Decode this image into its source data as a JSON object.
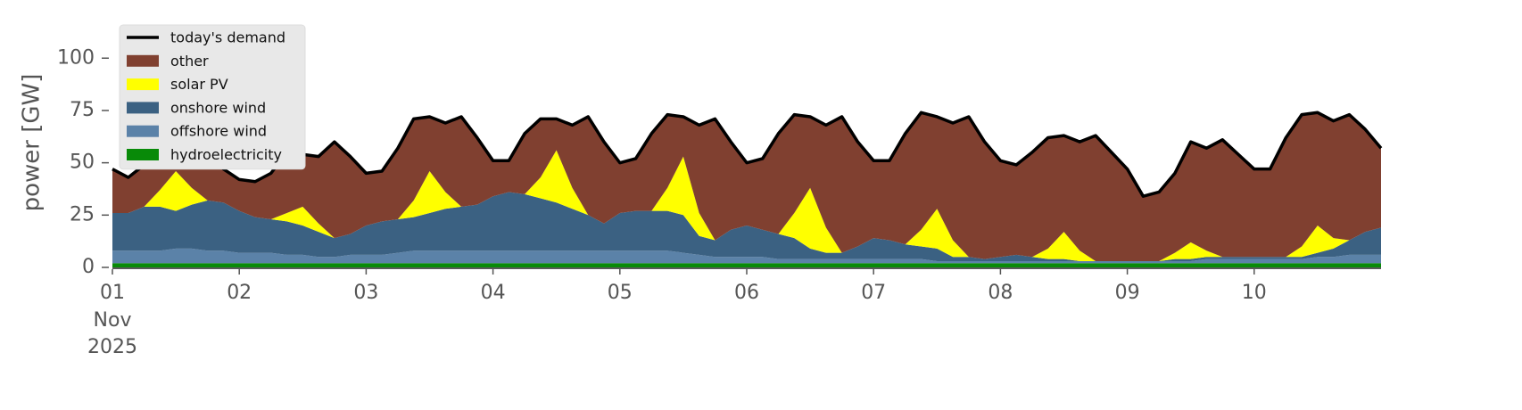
{
  "chart_data": {
    "type": "area",
    "stacked": true,
    "ylabel": "power [GW]",
    "x": [
      "2025-11-01T00:00",
      "2025-11-01T03:00",
      "2025-11-01T06:00",
      "2025-11-01T09:00",
      "2025-11-01T12:00",
      "2025-11-01T15:00",
      "2025-11-01T18:00",
      "2025-11-01T21:00",
      "2025-11-02T00:00",
      "2025-11-02T03:00",
      "2025-11-02T06:00",
      "2025-11-02T09:00",
      "2025-11-02T12:00",
      "2025-11-02T15:00",
      "2025-11-02T18:00",
      "2025-11-02T21:00",
      "2025-11-03T00:00",
      "2025-11-03T03:00",
      "2025-11-03T06:00",
      "2025-11-03T09:00",
      "2025-11-03T12:00",
      "2025-11-03T15:00",
      "2025-11-03T18:00",
      "2025-11-03T21:00",
      "2025-11-04T00:00",
      "2025-11-04T03:00",
      "2025-11-04T06:00",
      "2025-11-04T09:00",
      "2025-11-04T12:00",
      "2025-11-04T15:00",
      "2025-11-04T18:00",
      "2025-11-04T21:00",
      "2025-11-05T00:00",
      "2025-11-05T03:00",
      "2025-11-05T06:00",
      "2025-11-05T09:00",
      "2025-11-05T12:00",
      "2025-11-05T15:00",
      "2025-11-05T18:00",
      "2025-11-05T21:00",
      "2025-11-06T00:00",
      "2025-11-06T03:00",
      "2025-11-06T06:00",
      "2025-11-06T09:00",
      "2025-11-06T12:00",
      "2025-11-06T15:00",
      "2025-11-06T18:00",
      "2025-11-06T21:00",
      "2025-11-07T00:00",
      "2025-11-07T03:00",
      "2025-11-07T06:00",
      "2025-11-07T09:00",
      "2025-11-07T12:00",
      "2025-11-07T15:00",
      "2025-11-07T18:00",
      "2025-11-07T21:00",
      "2025-11-08T00:00",
      "2025-11-08T03:00",
      "2025-11-08T06:00",
      "2025-11-08T09:00",
      "2025-11-08T12:00",
      "2025-11-08T15:00",
      "2025-11-08T18:00",
      "2025-11-08T21:00",
      "2025-11-09T00:00",
      "2025-11-09T03:00",
      "2025-11-09T06:00",
      "2025-11-09T09:00",
      "2025-11-09T12:00",
      "2025-11-09T15:00",
      "2025-11-09T18:00",
      "2025-11-09T21:00",
      "2025-11-10T00:00",
      "2025-11-10T03:00",
      "2025-11-10T06:00",
      "2025-11-10T09:00",
      "2025-11-10T12:00",
      "2025-11-10T15:00",
      "2025-11-10T18:00",
      "2025-11-10T21:00",
      "2025-11-11T00:00"
    ],
    "series": [
      {
        "name": "today's demand",
        "type": "line",
        "color": "#000000",
        "values": [
          47,
          43,
          49,
          60,
          57,
          57,
          60,
          47,
          42,
          41,
          45,
          55,
          54,
          53,
          60,
          53,
          45,
          46,
          57,
          71,
          72,
          69,
          72,
          62,
          51,
          51,
          64,
          71,
          71,
          68,
          72,
          60,
          50,
          52,
          64,
          73,
          72,
          68,
          71,
          60,
          50,
          52,
          64,
          73,
          72,
          68,
          72,
          60,
          51,
          51,
          64,
          74,
          72,
          69,
          72,
          60,
          51,
          49,
          55,
          62,
          63,
          60,
          63,
          55,
          47,
          34,
          36,
          45,
          60,
          57,
          61,
          54,
          47,
          47,
          62,
          73,
          74,
          70,
          73,
          66,
          57
        ]
      },
      {
        "name": "other",
        "color": "#804030",
        "values": [
          21,
          17,
          20,
          23,
          11,
          19,
          28,
          16,
          15,
          17,
          22,
          29,
          25,
          32,
          46,
          37,
          25,
          24,
          34,
          39,
          26,
          33,
          43,
          32,
          17,
          15,
          29,
          28,
          15,
          30,
          47,
          39,
          24,
          25,
          37,
          35,
          19,
          42,
          58,
          42,
          30,
          34,
          48,
          47,
          34,
          49,
          65,
          50,
          37,
          38,
          53,
          56,
          44,
          56,
          67,
          56,
          46,
          43,
          50,
          53,
          46,
          52,
          60,
          52,
          44,
          31,
          33,
          38,
          48,
          49,
          56,
          49,
          42,
          42,
          57,
          63,
          54,
          56,
          60,
          49,
          38
        ]
      },
      {
        "name": "solar PV",
        "color": "#ffff00",
        "values": [
          0,
          0,
          0,
          8,
          19,
          8,
          0,
          0,
          0,
          0,
          0,
          4,
          9,
          4,
          0,
          0,
          0,
          0,
          0,
          8,
          20,
          8,
          0,
          0,
          0,
          0,
          0,
          10,
          25,
          10,
          0,
          0,
          0,
          0,
          0,
          11,
          28,
          11,
          0,
          0,
          0,
          0,
          0,
          12,
          29,
          12,
          0,
          0,
          0,
          0,
          0,
          8,
          19,
          8,
          0,
          0,
          0,
          0,
          0,
          5,
          13,
          5,
          0,
          0,
          0,
          0,
          0,
          3,
          8,
          3,
          0,
          0,
          0,
          0,
          0,
          5,
          13,
          5,
          0,
          0,
          0
        ]
      },
      {
        "name": "onshore wind",
        "color": "#3b6182",
        "values": [
          18,
          18,
          21,
          21,
          18,
          21,
          24,
          23,
          20,
          17,
          16,
          16,
          14,
          12,
          9,
          10,
          14,
          16,
          16,
          16,
          18,
          20,
          21,
          22,
          26,
          28,
          27,
          25,
          23,
          20,
          17,
          13,
          18,
          19,
          19,
          19,
          18,
          9,
          8,
          13,
          15,
          13,
          12,
          10,
          5,
          3,
          3,
          6,
          10,
          9,
          7,
          6,
          6,
          2,
          2,
          1,
          2,
          3,
          2,
          1,
          1,
          0,
          0,
          0,
          0,
          0,
          0,
          1,
          1,
          1,
          1,
          1,
          1,
          1,
          1,
          1,
          2,
          4,
          7,
          11,
          13
        ]
      },
      {
        "name": "offshore wind",
        "color": "#5b82a8",
        "values": [
          6,
          6,
          6,
          6,
          7,
          7,
          6,
          6,
          5,
          5,
          5,
          4,
          4,
          3,
          3,
          4,
          4,
          4,
          5,
          6,
          6,
          6,
          6,
          6,
          6,
          6,
          6,
          6,
          6,
          6,
          6,
          6,
          6,
          6,
          6,
          6,
          5,
          4,
          3,
          3,
          3,
          3,
          2,
          2,
          2,
          2,
          2,
          2,
          2,
          2,
          2,
          2,
          1,
          1,
          1,
          1,
          1,
          1,
          1,
          1,
          1,
          1,
          1,
          1,
          1,
          1,
          1,
          1,
          1,
          2,
          2,
          2,
          2,
          2,
          2,
          2,
          3,
          3,
          4,
          4,
          4
        ]
      },
      {
        "name": "hydroelectricity",
        "color": "#088a08",
        "values": [
          2,
          2,
          2,
          2,
          2,
          2,
          2,
          2,
          2,
          2,
          2,
          2,
          2,
          2,
          2,
          2,
          2,
          2,
          2,
          2,
          2,
          2,
          2,
          2,
          2,
          2,
          2,
          2,
          2,
          2,
          2,
          2,
          2,
          2,
          2,
          2,
          2,
          2,
          2,
          2,
          2,
          2,
          2,
          2,
          2,
          2,
          2,
          2,
          2,
          2,
          2,
          2,
          2,
          2,
          2,
          2,
          2,
          2,
          2,
          2,
          2,
          2,
          2,
          2,
          2,
          2,
          2,
          2,
          2,
          2,
          2,
          2,
          2,
          2,
          2,
          2,
          2,
          2,
          2,
          2,
          2
        ]
      }
    ],
    "xlim": [
      "2025-11-01T00:00",
      "2025-11-11T00:00"
    ],
    "xticks": [
      {
        "value": "2025-11-01",
        "label": "01"
      },
      {
        "value": "2025-11-02",
        "label": "02"
      },
      {
        "value": "2025-11-03",
        "label": "03"
      },
      {
        "value": "2025-11-04",
        "label": "04"
      },
      {
        "value": "2025-11-05",
        "label": "05"
      },
      {
        "value": "2025-11-06",
        "label": "06"
      },
      {
        "value": "2025-11-07",
        "label": "07"
      },
      {
        "value": "2025-11-08",
        "label": "08"
      },
      {
        "value": "2025-11-09",
        "label": "09"
      },
      {
        "value": "2025-11-10",
        "label": "10"
      }
    ],
    "x_tick_sublabels": [
      "Nov",
      "2025"
    ],
    "ylim": [
      0,
      118
    ],
    "yticks": [
      0,
      25,
      50,
      75,
      100
    ],
    "grid": false,
    "legend": "upper left"
  }
}
